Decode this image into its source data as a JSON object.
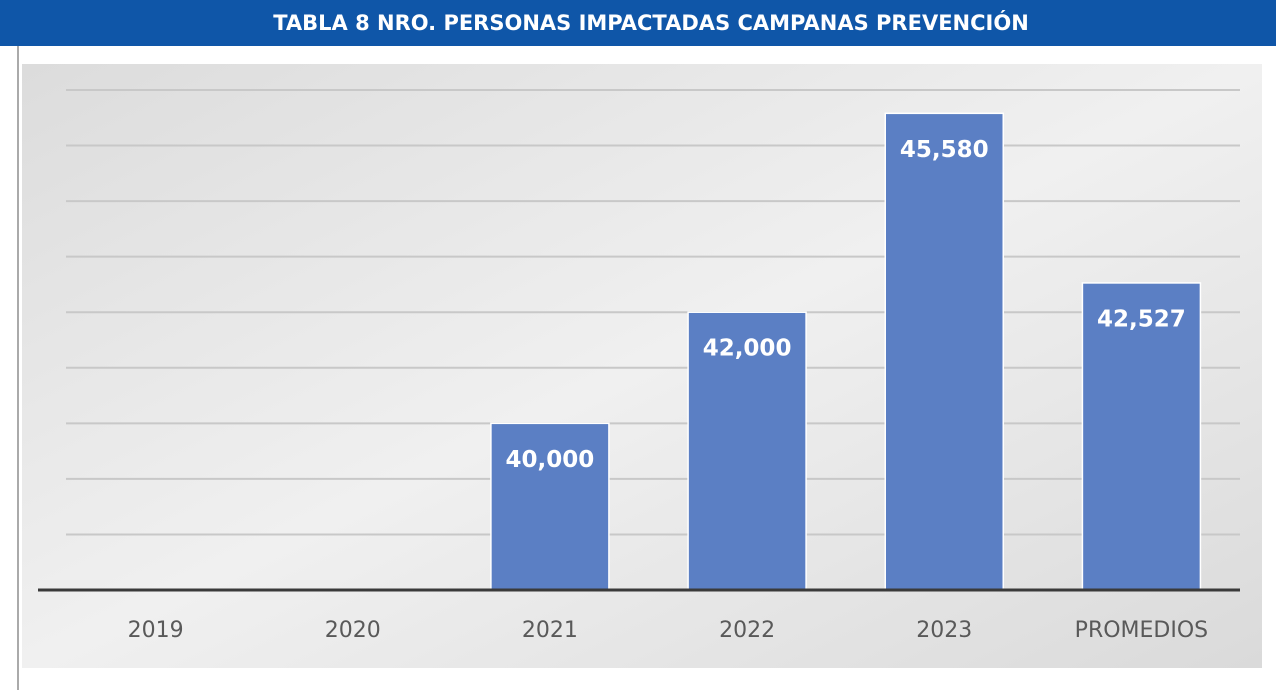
{
  "chart_data": {
    "type": "bar",
    "title": "TABLA 8 NRO. PERSONAS IMPACTADAS CAMPANAS PREVENCIÓN",
    "categories": [
      "2019",
      "2020",
      "2021",
      "2022",
      "2023",
      "PROMEDIOS"
    ],
    "values": [
      null,
      null,
      40000,
      42000,
      45580,
      42527
    ],
    "value_labels": [
      null,
      null,
      "40,000",
      "42,000",
      "45,580",
      "42,527"
    ],
    "color": "#5b7fc4",
    "ylim": [
      37000,
      46000
    ],
    "yticks": [
      37000,
      38000,
      39000,
      40000,
      41000,
      42000,
      43000,
      44000,
      45000,
      46000
    ],
    "grid": true
  }
}
